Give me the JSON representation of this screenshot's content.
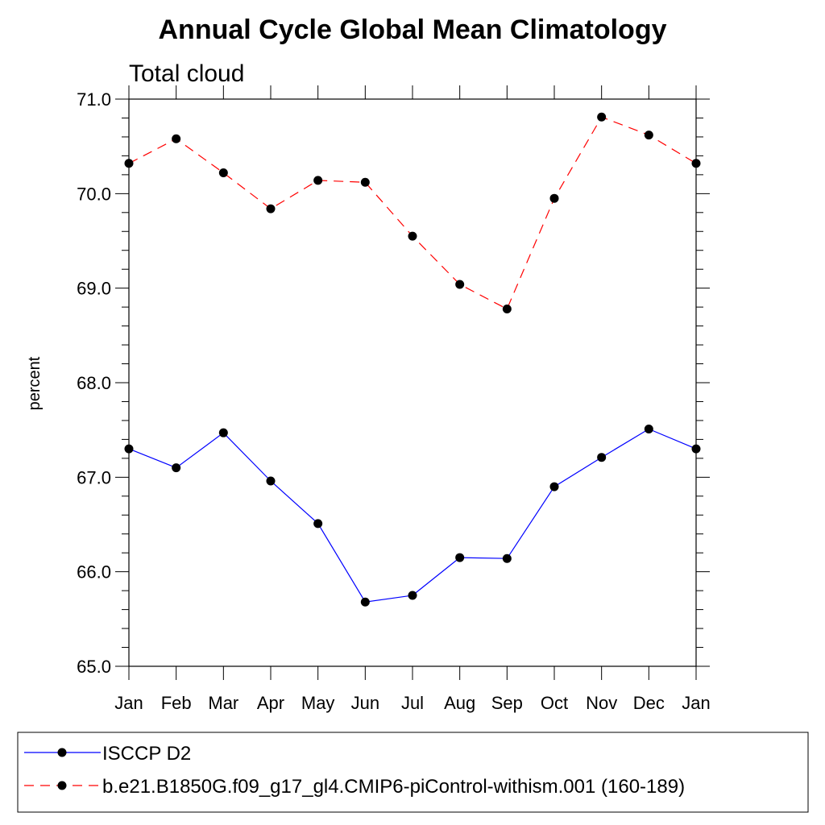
{
  "chart_data": {
    "type": "line",
    "title": "Annual Cycle Global Mean Climatology",
    "subtitle": "Total cloud",
    "xlabel": "",
    "ylabel": "percent",
    "categories": [
      "Jan",
      "Feb",
      "Mar",
      "Apr",
      "May",
      "Jun",
      "Jul",
      "Aug",
      "Sep",
      "Oct",
      "Nov",
      "Dec",
      "Jan"
    ],
    "ylim": [
      65.0,
      71.0
    ],
    "yticks": [
      "65.0",
      "66.0",
      "67.0",
      "68.0",
      "69.0",
      "70.0",
      "71.0"
    ],
    "grid": false,
    "legend_position": "bottom",
    "series": [
      {
        "name": "ISCCP D2",
        "color": "#0000ff",
        "line_style": "solid",
        "marker": "filled-circle",
        "values": [
          67.3,
          67.1,
          67.47,
          66.96,
          66.51,
          65.68,
          65.75,
          66.15,
          66.14,
          66.9,
          67.21,
          67.51,
          67.3
        ]
      },
      {
        "name": "b.e21.B1850G.f09_g17_gl4.CMIP6-piControl-withism.001 (160-189)",
        "color": "#ff0000",
        "line_style": "dashed",
        "marker": "filled-circle",
        "values": [
          70.32,
          70.58,
          70.22,
          69.84,
          70.14,
          70.12,
          69.55,
          69.04,
          68.78,
          69.95,
          70.81,
          70.62,
          70.32
        ]
      }
    ]
  }
}
